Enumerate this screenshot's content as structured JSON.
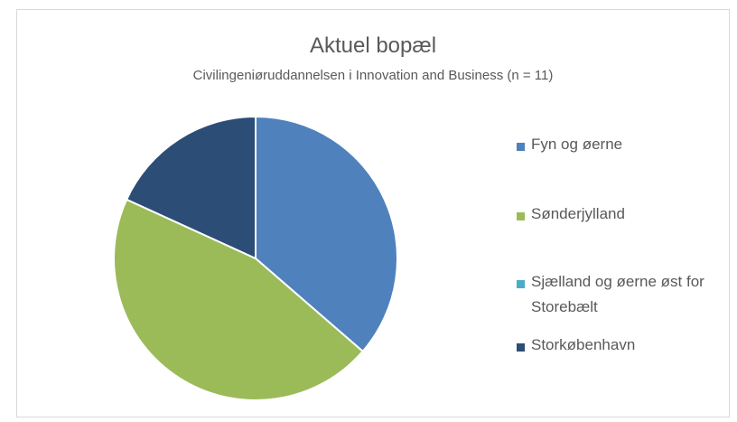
{
  "chart_data": {
    "type": "pie",
    "title": "Aktuel bopæl",
    "subtitle": "Civilingeniøruddannelsen i Innovation and Business (n = 11)",
    "categories": [
      "Fyn og øerne",
      "Sønderjylland",
      "Sjælland og øerne øst for Storebælt",
      "Storkøbenhavn"
    ],
    "values": [
      4,
      5,
      0,
      2
    ],
    "colors": [
      "#4f81bd",
      "#9bbb59",
      "#4bacc6",
      "#2c4d75"
    ],
    "legend": "right"
  }
}
